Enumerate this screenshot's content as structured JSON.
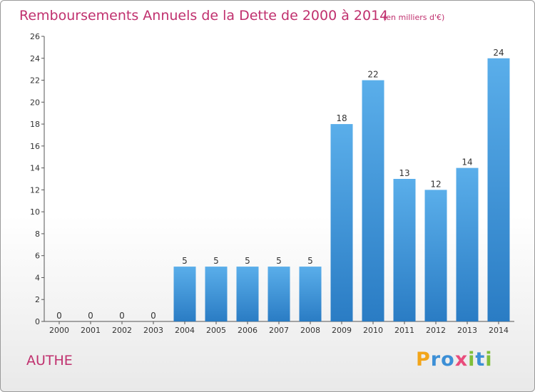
{
  "chart_data": {
    "type": "bar",
    "title": "Remboursements Annuels de la Dette de 2000 à 2014",
    "unit": "(en milliers d'€)",
    "categories": [
      "2000",
      "2001",
      "2002",
      "2003",
      "2004",
      "2005",
      "2006",
      "2007",
      "2008",
      "2009",
      "2010",
      "2011",
      "2012",
      "2013",
      "2014"
    ],
    "values": [
      0,
      0,
      0,
      0,
      5,
      5,
      5,
      5,
      5,
      18,
      22,
      13,
      12,
      14,
      24
    ],
    "ylim": [
      0,
      26
    ],
    "yticks": [
      0,
      2,
      4,
      6,
      8,
      10,
      12,
      14,
      16,
      18,
      20,
      22,
      24,
      26
    ],
    "grid": false,
    "bar_color": "#3a8fd6"
  },
  "commune": "AUTHE",
  "logo": {
    "text": "Proxiti",
    "letters": [
      {
        "ch": "P",
        "color": "#f2a51a"
      },
      {
        "ch": "r",
        "color": "#3c8fd6"
      },
      {
        "ch": "o",
        "color": "#3c8fd6"
      },
      {
        "ch": "x",
        "color": "#e94c7c"
      },
      {
        "ch": "i",
        "color": "#7fbf3a"
      },
      {
        "ch": "t",
        "color": "#3c8fd6"
      },
      {
        "ch": "i",
        "color": "#7fbf3a"
      }
    ]
  },
  "colors": {
    "title": "#c0306e",
    "axis": "#555555"
  }
}
